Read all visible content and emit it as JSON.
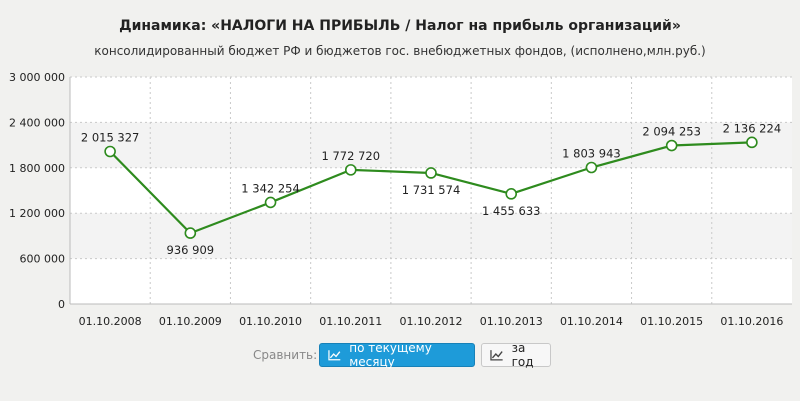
{
  "title": "Динамика: «НАЛОГИ НА ПРИБЫЛЬ / Налог на прибыль организаций»",
  "subtitle": "консолидированный бюджет РФ и бюджетов гос. внебюджетных фондов, (исполнено,млн.руб.)",
  "compare": {
    "label": "Сравнить:",
    "btn_month": "по текущему месяцу",
    "btn_year": "за год",
    "btn_month_icon": "line-chart-icon",
    "btn_year_icon": "line-chart-icon"
  },
  "colors": {
    "line": "#2e8b1e",
    "active_button": "#1e9bd9"
  },
  "chart_data": {
    "type": "line",
    "title": "Динамика: «НАЛОГИ НА ПРИБЫЛЬ / Налог на прибыль организаций»",
    "subtitle": "консолидированный бюджет РФ и бюджетов гос. внебюджетных фондов, (исполнено,млн.руб.)",
    "categories": [
      "01.10.2008",
      "01.10.2009",
      "01.10.2010",
      "01.10.2011",
      "01.10.2012",
      "01.10.2013",
      "01.10.2014",
      "01.10.2015",
      "01.10.2016"
    ],
    "values": [
      2015327,
      936909,
      1342254,
      1772720,
      1731574,
      1455633,
      1803943,
      2094253,
      2136224
    ],
    "value_labels": [
      "2 015 327",
      "936 909",
      "1 342 254",
      "1 772 720",
      "1 731 574",
      "1 455 633",
      "1 803 943",
      "2 094 253",
      "2 136 224"
    ],
    "label_position": [
      "above",
      "below",
      "above",
      "above",
      "below",
      "below",
      "above",
      "above",
      "above"
    ],
    "ylim": [
      0,
      3000000
    ],
    "yticks": [
      0,
      600000,
      1200000,
      1800000,
      2400000,
      3000000
    ],
    "ytick_labels": [
      "0",
      "600 000",
      "1 200 000",
      "1 800 000",
      "2 400 000",
      "3 000 000"
    ],
    "xlabel": "",
    "ylabel": "",
    "grid": true,
    "legend": "none"
  }
}
